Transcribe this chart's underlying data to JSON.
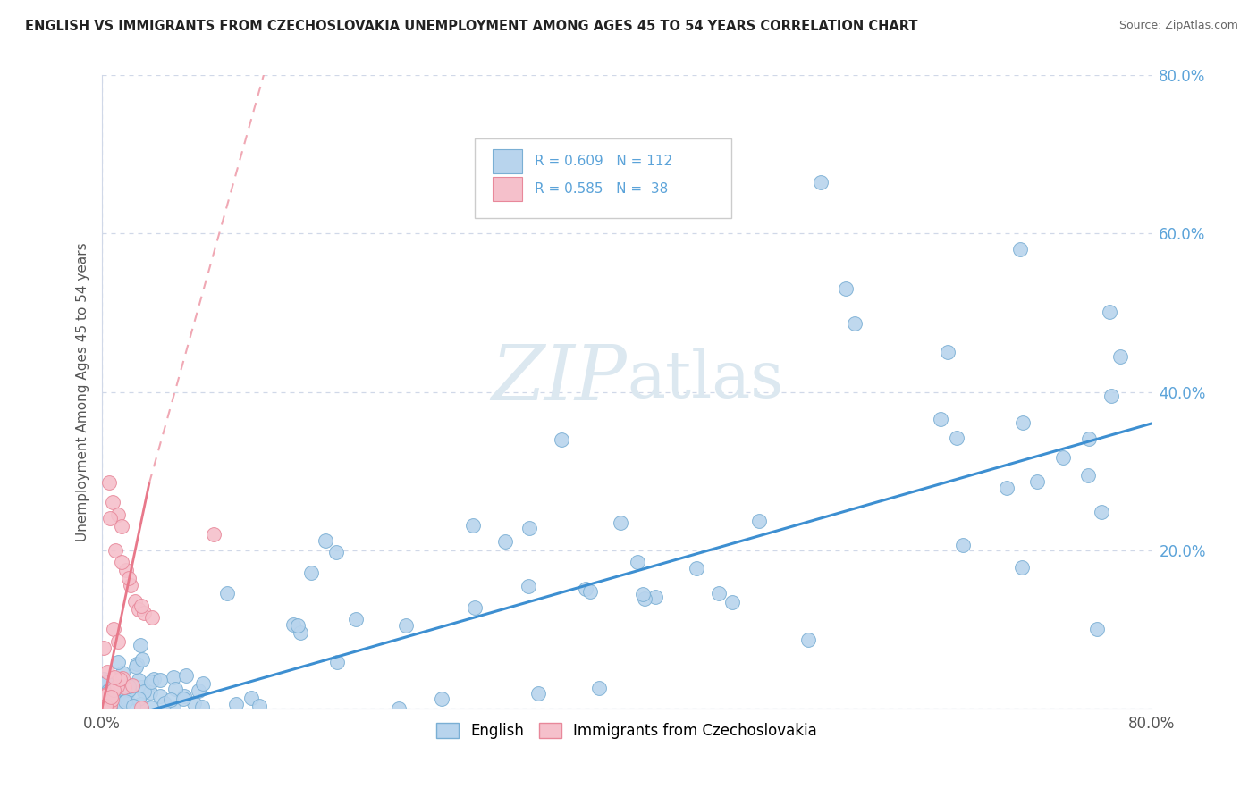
{
  "title": "ENGLISH VS IMMIGRANTS FROM CZECHOSLOVAKIA UNEMPLOYMENT AMONG AGES 45 TO 54 YEARS CORRELATION CHART",
  "source": "Source: ZipAtlas.com",
  "ylabel": "Unemployment Among Ages 45 to 54 years",
  "xlim": [
    0.0,
    0.8
  ],
  "ylim": [
    0.0,
    0.8
  ],
  "ytick_positions": [
    0.0,
    0.2,
    0.4,
    0.6,
    0.8
  ],
  "english_color": "#b8d4ed",
  "english_edge": "#7aafd4",
  "czecho_color": "#f5c0cb",
  "czecho_edge": "#e8889a",
  "english_line_color": "#3d8fd1",
  "czecho_line_color": "#e8788a",
  "czecho_dash_color": "#f0a8b4",
  "tick_color": "#5ba3d9",
  "grid_color": "#d0d8e8",
  "background_color": "#ffffff",
  "watermark_color": "#dce8f0",
  "english_R": 0.609,
  "english_N": 112,
  "czecho_R": 0.585,
  "czecho_N": 38,
  "legend_box_color": "#f8f9fa",
  "legend_border_color": "#cccccc",
  "title_color": "#222222",
  "source_color": "#666666"
}
